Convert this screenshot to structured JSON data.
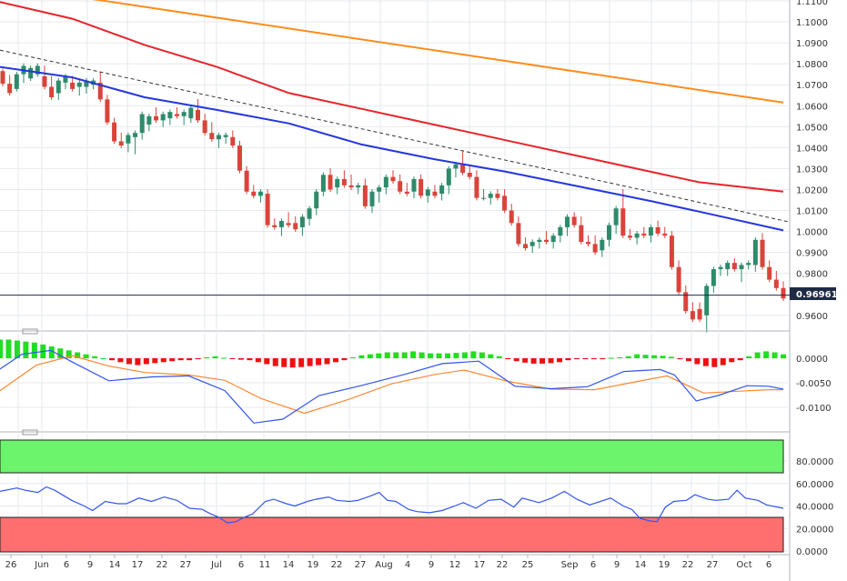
{
  "colors": {
    "grid": "#e6e9ee",
    "axis": "#b0b6bf",
    "bull": "#2e8b6a",
    "bear": "#d9443a",
    "ma_orange": "#ff8c1a",
    "ma_red": "#e8242a",
    "ma_blue": "#2436e0",
    "trend": "#333333",
    "price_line": "#1f2a44",
    "macd_pos": "#22dd22",
    "macd_neg": "#ee1111",
    "macd_line": "#3355ee",
    "signal_line": "#ff8833",
    "rsi_line": "#3355ee",
    "ob_fill": "#6cf46c",
    "os_fill": "#ff6f6f"
  },
  "price_label": "0.969610",
  "chart_data": [
    {
      "type": "candlestick",
      "panel": "price",
      "ylim": [
        0.9505,
        1.1105
      ],
      "y_ticks": [
        "1.1100",
        "1.1000",
        "1.0900",
        "1.0800",
        "1.0700",
        "1.0600",
        "1.0500",
        "1.0400",
        "1.0300",
        "1.0200",
        "1.0100",
        "1.0000",
        "0.9900",
        "0.9800",
        "0.9600"
      ],
      "x_ticks": [
        "26",
        "Jun",
        "6",
        "9",
        "14",
        "17",
        "22",
        "27",
        "Jul",
        "6",
        "11",
        "14",
        "19",
        "22",
        "27",
        "Aug",
        "4",
        "9",
        "12",
        "17",
        "22",
        "25",
        "Sep",
        "6",
        "9",
        "14",
        "19",
        "22",
        "27",
        "Oct",
        "6"
      ],
      "current_price": 0.96961,
      "candles": [
        [
          1.0765,
          1.0705,
          1.073
        ],
        [
          1.0705,
          1.066,
          1.0735
        ],
        [
          1.068,
          1.075,
          1.07
        ],
        [
          1.075,
          1.079,
          1.072
        ],
        [
          1.073,
          1.078,
          1.077
        ],
        [
          1.075,
          1.079,
          1.077
        ],
        [
          1.074,
          1.069,
          1.078
        ],
        [
          1.069,
          1.064,
          1.073
        ],
        [
          1.066,
          1.072,
          1.064
        ],
        [
          1.071,
          1.074,
          1.069
        ],
        [
          1.071,
          1.068,
          1.073
        ],
        [
          1.069,
          1.071,
          1.066
        ],
        [
          1.069,
          1.072,
          1.067
        ],
        [
          1.07,
          1.072,
          1.069
        ],
        [
          1.071,
          1.063,
          1.075
        ],
        [
          1.063,
          1.052,
          1.064
        ],
        [
          1.052,
          1.043,
          1.053
        ],
        [
          1.043,
          1.041,
          1.046
        ],
        [
          1.042,
          1.046,
          1.039
        ],
        [
          1.045,
          1.047,
          1.038
        ],
        [
          1.047,
          1.056,
          1.045
        ],
        [
          1.051,
          1.055,
          1.049
        ],
        [
          1.055,
          1.053,
          1.058
        ],
        [
          1.053,
          1.056,
          1.051
        ],
        [
          1.054,
          1.057,
          1.052
        ],
        [
          1.056,
          1.055,
          1.058
        ],
        [
          1.055,
          1.057,
          1.052
        ],
        [
          1.054,
          1.059,
          1.053
        ],
        [
          1.058,
          1.053,
          1.062
        ],
        [
          1.053,
          1.047,
          1.055
        ],
        [
          1.047,
          1.044,
          1.051
        ],
        [
          1.044,
          1.046,
          1.041
        ],
        [
          1.045,
          1.046,
          1.043
        ],
        [
          1.045,
          1.041,
          1.047
        ],
        [
          1.041,
          1.029,
          1.042
        ],
        [
          1.029,
          1.019,
          1.03
        ],
        [
          1.019,
          1.017,
          1.021
        ],
        [
          1.017,
          1.019,
          1.015
        ],
        [
          1.018,
          1.003,
          1.019
        ],
        [
          1.003,
          1.002,
          1.005
        ],
        [
          1.002,
          1.005,
          0.999
        ],
        [
          1.004,
          1.003,
          1.008
        ],
        [
          1.004,
          1.001,
          1.006
        ],
        [
          1.002,
          1.007,
          0.999
        ],
        [
          1.006,
          1.011,
          1.004
        ],
        [
          1.011,
          1.019,
          1.009
        ],
        [
          1.019,
          1.027,
          1.018
        ],
        [
          1.027,
          1.02,
          1.029
        ],
        [
          1.021,
          1.025,
          1.019
        ],
        [
          1.025,
          1.022,
          1.028
        ],
        [
          1.022,
          1.021,
          1.026
        ],
        [
          1.021,
          1.022,
          1.019
        ],
        [
          1.022,
          1.012,
          1.024
        ],
        [
          1.012,
          1.019,
          1.01
        ],
        [
          1.019,
          1.021,
          1.015
        ],
        [
          1.021,
          1.026,
          1.019
        ],
        [
          1.026,
          1.024,
          1.028
        ],
        [
          1.024,
          1.019,
          1.026
        ],
        [
          1.019,
          1.018,
          1.022
        ],
        [
          1.019,
          1.025,
          1.017
        ],
        [
          1.025,
          1.017,
          1.026
        ],
        [
          1.017,
          1.02,
          1.015
        ],
        [
          1.019,
          1.017,
          1.021
        ],
        [
          1.018,
          1.022,
          1.016
        ],
        [
          1.022,
          1.03,
          1.019
        ],
        [
          1.03,
          1.032,
          1.027
        ],
        [
          1.032,
          1.028,
          1.037
        ],
        [
          1.028,
          1.026,
          1.03
        ],
        [
          1.026,
          1.016,
          1.028
        ],
        [
          1.016,
          1.016,
          1.019
        ],
        [
          1.016,
          1.018,
          1.014
        ],
        [
          1.018,
          1.016,
          1.019
        ],
        [
          1.017,
          1.01,
          1.019
        ],
        [
          1.01,
          1.004,
          1.012
        ],
        [
          1.004,
          0.994,
          1.006
        ],
        [
          0.994,
          0.992,
          0.996
        ],
        [
          0.993,
          0.995,
          0.991
        ],
        [
          0.995,
          0.996,
          0.993
        ],
        [
          0.996,
          0.995,
          0.999
        ],
        [
          0.995,
          0.998,
          0.993
        ],
        [
          0.998,
          1.002,
          0.996
        ],
        [
          1.002,
          1.007,
          0.999
        ],
        [
          1.007,
          1.003,
          1.008
        ],
        [
          1.003,
          0.995,
          1.006
        ],
        [
          0.995,
          0.994,
          0.997
        ],
        [
          0.994,
          0.99,
          0.997
        ],
        [
          0.991,
          0.996,
          0.989
        ],
        [
          0.996,
          1.003,
          0.994
        ],
        [
          1.003,
          1.011,
          1.0
        ],
        [
          1.011,
          0.998,
          1.019
        ],
        [
          0.998,
          0.997,
          1.0
        ],
        [
          0.997,
          0.999,
          0.995
        ],
        [
          0.999,
          0.998,
          1.001
        ],
        [
          0.998,
          1.002,
          0.996
        ],
        [
          1.002,
          0.999,
          1.004
        ],
        [
          0.999,
          0.998,
          1.001
        ],
        [
          0.998,
          0.983,
          0.999
        ],
        [
          0.983,
          0.971,
          0.985
        ],
        [
          0.971,
          0.962,
          0.973
        ],
        [
          0.962,
          0.958,
          0.965
        ],
        [
          0.963,
          0.958,
          0.965
        ],
        [
          0.96,
          0.974,
          0.953
        ],
        [
          0.974,
          0.982,
          0.972
        ],
        [
          0.982,
          0.983,
          0.98
        ],
        [
          0.982,
          0.985,
          0.98
        ],
        [
          0.985,
          0.982,
          0.986
        ],
        [
          0.982,
          0.984,
          0.977
        ],
        [
          0.984,
          0.985,
          0.983
        ],
        [
          0.984,
          0.996,
          0.982
        ],
        [
          0.996,
          0.983,
          0.998
        ],
        [
          0.983,
          0.977,
          0.985
        ],
        [
          0.977,
          0.973,
          0.98
        ],
        [
          0.973,
          0.968,
          0.975
        ]
      ],
      "ma_orange": [
        1.1175,
        1.0615
      ],
      "ma_red": [
        [
          0,
          1.1095
        ],
        [
          12,
          1.1015
        ],
        [
          24,
          1.089
        ],
        [
          36,
          1.0785
        ],
        [
          48,
          1.066
        ],
        [
          60,
          1.0585
        ],
        [
          72,
          1.051
        ],
        [
          84,
          1.0435
        ],
        [
          96,
          1.036
        ],
        [
          108,
          1.0285
        ],
        [
          116,
          1.0235
        ],
        [
          130,
          1.019
        ]
      ],
      "ma_blue": [
        [
          0,
          1.0785
        ],
        [
          12,
          1.0735
        ],
        [
          24,
          1.064
        ],
        [
          36,
          1.058
        ],
        [
          48,
          1.0515
        ],
        [
          60,
          1.0415
        ],
        [
          72,
          1.0345
        ],
        [
          84,
          1.0285
        ],
        [
          96,
          1.0215
        ],
        [
          108,
          1.0145
        ],
        [
          116,
          1.0095
        ],
        [
          130,
          1.0005
        ]
      ],
      "trend_line": [
        1.0865,
        1.0045
      ]
    },
    {
      "type": "macd",
      "panel": "macd",
      "y_ticks": [
        "0.0000",
        "-0.0050",
        "-0.0100"
      ],
      "ylim": [
        -0.0145,
        0.0045
      ],
      "histogram": [
        0.0038,
        0.0038,
        0.0036,
        0.0034,
        0.0032,
        0.0028,
        0.0024,
        0.002,
        0.0016,
        0.0012,
        0.0008,
        0.0004,
        0.0,
        -0.0004,
        -0.0008,
        -0.0012,
        -0.0014,
        -0.0012,
        -0.001,
        -0.0008,
        -0.0006,
        -0.0004,
        -0.0004,
        -0.0002,
        0.0002,
        0.0004,
        0.0001,
        -0.0001,
        -0.0003,
        -0.0004,
        -0.0008,
        -0.0012,
        -0.0016,
        -0.0018,
        -0.0019,
        -0.0018,
        -0.0016,
        -0.0014,
        -0.0012,
        -0.0008,
        -0.0004,
        0.0002,
        0.0006,
        0.0008,
        0.001,
        0.0012,
        0.0012,
        0.0012,
        0.0014,
        0.0012,
        0.001,
        0.001,
        0.001,
        0.0011,
        0.0012,
        0.0014,
        0.0012,
        0.0008,
        0.0004,
        -0.0002,
        -0.0006,
        -0.0009,
        -0.0011,
        -0.0011,
        -0.001,
        -0.0008,
        -0.0004,
        -0.0002,
        -0.0002,
        -0.0002,
        -0.0002,
        0.0001,
        0.0002,
        0.0004,
        0.0008,
        0.0007,
        0.0006,
        0.0005,
        0.0003,
        -0.0002,
        -0.0006,
        -0.0012,
        -0.0016,
        -0.0018,
        -0.0014,
        -0.0008,
        -0.0004,
        0.0004,
        0.0012,
        0.0014,
        0.0012,
        0.0008
      ],
      "macd_line": [
        [
          0,
          -0.0022
        ],
        [
          6,
          0.0008
        ],
        [
          14,
          0.0016
        ],
        [
          20,
          -0.0008
        ],
        [
          30,
          -0.0046
        ],
        [
          42,
          -0.0038
        ],
        [
          52,
          -0.0036
        ],
        [
          62,
          -0.0066
        ],
        [
          70,
          -0.0132
        ],
        [
          78,
          -0.0124
        ],
        [
          88,
          -0.0076
        ],
        [
          100,
          -0.0055
        ],
        [
          112,
          -0.0032
        ],
        [
          122,
          -0.0011
        ],
        [
          132,
          -0.0006
        ],
        [
          142,
          -0.0057
        ],
        [
          152,
          -0.0062
        ],
        [
          162,
          -0.0058
        ],
        [
          172,
          -0.0027
        ],
        [
          182,
          -0.0023
        ],
        [
          186,
          -0.0034
        ],
        [
          192,
          -0.0087
        ],
        [
          198,
          -0.0076
        ],
        [
          206,
          -0.0056
        ],
        [
          212,
          -0.0057
        ],
        [
          216,
          -0.0063
        ]
      ],
      "signal_line": [
        [
          0,
          -0.0066
        ],
        [
          10,
          -0.0014
        ],
        [
          20,
          0.0005
        ],
        [
          30,
          -0.0016
        ],
        [
          40,
          -0.0029
        ],
        [
          52,
          -0.0034
        ],
        [
          62,
          -0.0045
        ],
        [
          72,
          -0.0082
        ],
        [
          84,
          -0.0112
        ],
        [
          96,
          -0.0084
        ],
        [
          108,
          -0.0052
        ],
        [
          120,
          -0.0033
        ],
        [
          128,
          -0.0024
        ],
        [
          140,
          -0.0047
        ],
        [
          152,
          -0.0063
        ],
        [
          164,
          -0.0064
        ],
        [
          176,
          -0.0047
        ],
        [
          184,
          -0.0036
        ],
        [
          194,
          -0.0071
        ],
        [
          204,
          -0.0067
        ],
        [
          212,
          -0.0064
        ],
        [
          216,
          -0.0064
        ]
      ]
    },
    {
      "type": "rsi",
      "panel": "rsi",
      "y_ticks": [
        "80.0000",
        "60.0000",
        "40.0000",
        "20.0000",
        "0.0000"
      ],
      "ylim": [
        0,
        100
      ],
      "overbought": 70,
      "oversold": 30,
      "rsi": [
        [
          0,
          53
        ],
        [
          8,
          56
        ],
        [
          12,
          54
        ],
        [
          18,
          52
        ],
        [
          22,
          57
        ],
        [
          26,
          54
        ],
        [
          34,
          45
        ],
        [
          40,
          40
        ],
        [
          44,
          36
        ],
        [
          50,
          44
        ],
        [
          56,
          42
        ],
        [
          60,
          42
        ],
        [
          66,
          47
        ],
        [
          72,
          44
        ],
        [
          78,
          48
        ],
        [
          84,
          45
        ],
        [
          90,
          38
        ],
        [
          96,
          37
        ],
        [
          100,
          33
        ],
        [
          104,
          30
        ],
        [
          108,
          25
        ],
        [
          112,
          26
        ],
        [
          116,
          30
        ],
        [
          120,
          33
        ],
        [
          126,
          44
        ],
        [
          130,
          46
        ],
        [
          136,
          42
        ],
        [
          140,
          40
        ],
        [
          146,
          44
        ],
        [
          150,
          46
        ],
        [
          156,
          48
        ],
        [
          160,
          45
        ],
        [
          166,
          44
        ],
        [
          170,
          45
        ],
        [
          176,
          49
        ],
        [
          180,
          52
        ],
        [
          184,
          45
        ],
        [
          188,
          44
        ],
        [
          194,
          37
        ],
        [
          198,
          35
        ],
        [
          204,
          34
        ],
        [
          210,
          36
        ],
        [
          216,
          40
        ],
        [
          220,
          43
        ],
        [
          226,
          38
        ],
        [
          232,
          45
        ],
        [
          238,
          46
        ],
        [
          244,
          39
        ],
        [
          248,
          47
        ],
        [
          256,
          43
        ],
        [
          262,
          47
        ],
        [
          268,
          53
        ],
        [
          274,
          46
        ],
        [
          280,
          41
        ],
        [
          290,
          47
        ],
        [
          296,
          40
        ],
        [
          300,
          37
        ],
        [
          304,
          29
        ],
        [
          308,
          27
        ],
        [
          312,
          26
        ],
        [
          316,
          39
        ],
        [
          320,
          44
        ],
        [
          326,
          45
        ],
        [
          330,
          50
        ],
        [
          336,
          46
        ],
        [
          340,
          45
        ],
        [
          346,
          46
        ],
        [
          350,
          54
        ],
        [
          354,
          47
        ],
        [
          360,
          45
        ],
        [
          364,
          41
        ],
        [
          372,
          38
        ]
      ]
    }
  ]
}
